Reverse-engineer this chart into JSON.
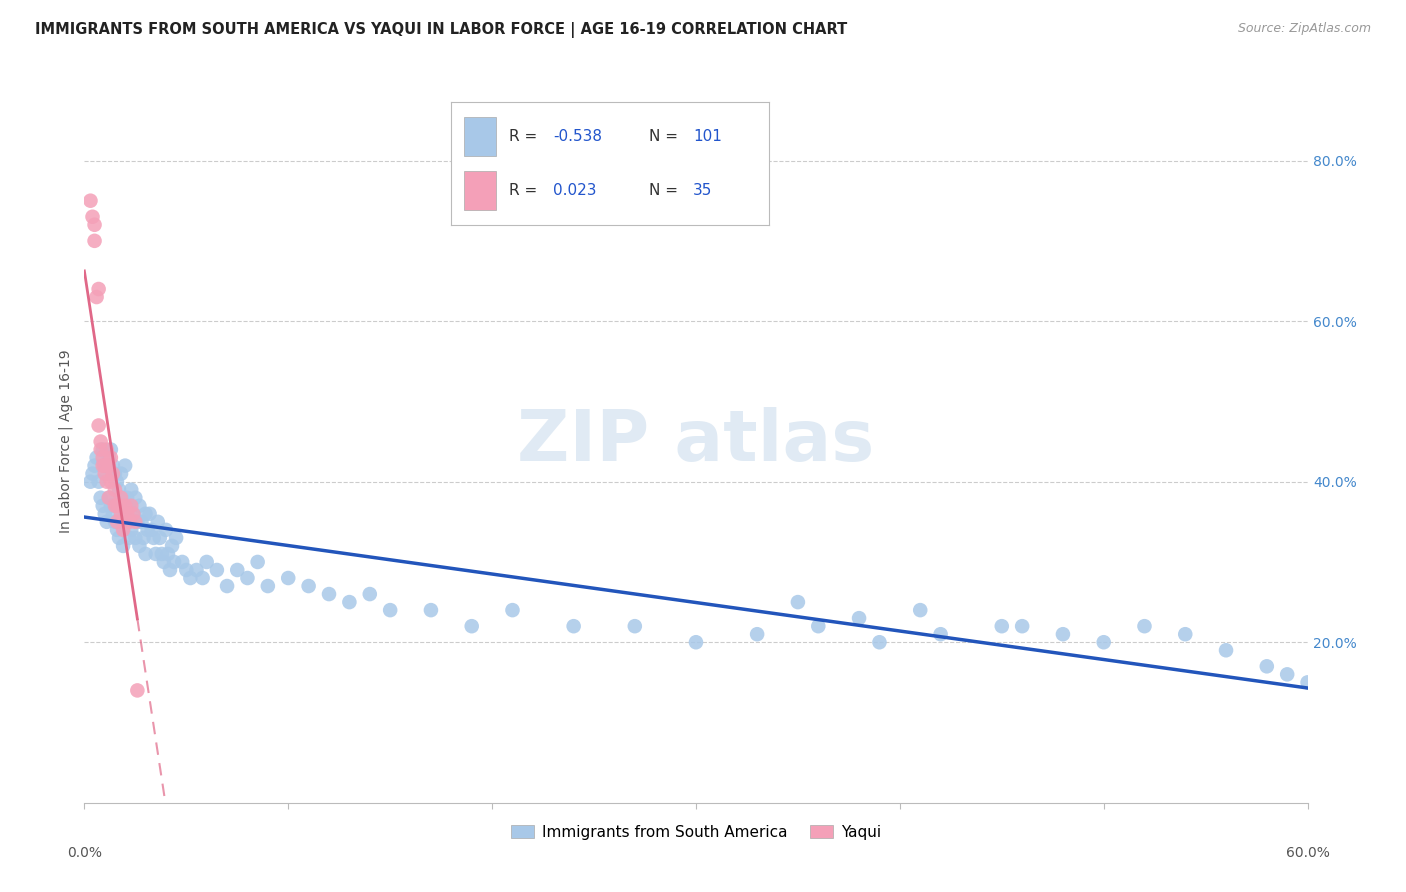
{
  "title": "IMMIGRANTS FROM SOUTH AMERICA VS YAQUI IN LABOR FORCE | AGE 16-19 CORRELATION CHART",
  "source": "Source: ZipAtlas.com",
  "ylabel": "In Labor Force | Age 16-19",
  "legend_label_blue": "Immigrants from South America",
  "legend_label_pink": "Yaqui",
  "r_blue": -0.538,
  "n_blue": 101,
  "r_pink": 0.023,
  "n_pink": 35,
  "blue_color": "#a8c8e8",
  "blue_line_color": "#2255bb",
  "pink_color": "#f4a0b8",
  "pink_line_color": "#e06888",
  "background_color": "#ffffff",
  "grid_color": "#cccccc",
  "title_color": "#222222",
  "source_color": "#999999",
  "xlim": [
    0.0,
    0.6
  ],
  "ylim": [
    0.0,
    0.9
  ],
  "blue_x": [
    0.003,
    0.004,
    0.005,
    0.006,
    0.007,
    0.008,
    0.009,
    0.009,
    0.01,
    0.01,
    0.011,
    0.011,
    0.012,
    0.012,
    0.013,
    0.013,
    0.014,
    0.014,
    0.015,
    0.015,
    0.016,
    0.016,
    0.017,
    0.017,
    0.018,
    0.018,
    0.019,
    0.019,
    0.02,
    0.02,
    0.021,
    0.022,
    0.022,
    0.023,
    0.023,
    0.024,
    0.025,
    0.025,
    0.026,
    0.027,
    0.027,
    0.028,
    0.029,
    0.03,
    0.03,
    0.031,
    0.032,
    0.033,
    0.034,
    0.035,
    0.036,
    0.037,
    0.038,
    0.039,
    0.04,
    0.041,
    0.042,
    0.043,
    0.044,
    0.045,
    0.048,
    0.05,
    0.052,
    0.055,
    0.058,
    0.06,
    0.065,
    0.07,
    0.075,
    0.08,
    0.085,
    0.09,
    0.1,
    0.11,
    0.12,
    0.13,
    0.14,
    0.15,
    0.17,
    0.19,
    0.21,
    0.24,
    0.27,
    0.3,
    0.33,
    0.36,
    0.39,
    0.42,
    0.45,
    0.48,
    0.5,
    0.52,
    0.54,
    0.56,
    0.58,
    0.59,
    0.6,
    0.46,
    0.35,
    0.38,
    0.41
  ],
  "blue_y": [
    0.4,
    0.41,
    0.42,
    0.43,
    0.4,
    0.38,
    0.44,
    0.37,
    0.42,
    0.36,
    0.41,
    0.35,
    0.43,
    0.38,
    0.44,
    0.37,
    0.42,
    0.36,
    0.41,
    0.35,
    0.4,
    0.34,
    0.39,
    0.33,
    0.41,
    0.35,
    0.38,
    0.32,
    0.42,
    0.36,
    0.38,
    0.37,
    0.33,
    0.39,
    0.34,
    0.36,
    0.38,
    0.33,
    0.35,
    0.37,
    0.32,
    0.35,
    0.33,
    0.36,
    0.31,
    0.34,
    0.36,
    0.34,
    0.33,
    0.31,
    0.35,
    0.33,
    0.31,
    0.3,
    0.34,
    0.31,
    0.29,
    0.32,
    0.3,
    0.33,
    0.3,
    0.29,
    0.28,
    0.29,
    0.28,
    0.3,
    0.29,
    0.27,
    0.29,
    0.28,
    0.3,
    0.27,
    0.28,
    0.27,
    0.26,
    0.25,
    0.26,
    0.24,
    0.24,
    0.22,
    0.24,
    0.22,
    0.22,
    0.2,
    0.21,
    0.22,
    0.2,
    0.21,
    0.22,
    0.21,
    0.2,
    0.22,
    0.21,
    0.19,
    0.17,
    0.16,
    0.15,
    0.22,
    0.25,
    0.23,
    0.24
  ],
  "pink_x": [
    0.003,
    0.004,
    0.005,
    0.005,
    0.006,
    0.007,
    0.007,
    0.008,
    0.008,
    0.009,
    0.009,
    0.01,
    0.01,
    0.011,
    0.011,
    0.012,
    0.012,
    0.013,
    0.013,
    0.014,
    0.015,
    0.015,
    0.016,
    0.016,
    0.017,
    0.018,
    0.018,
    0.019,
    0.02,
    0.021,
    0.022,
    0.023,
    0.024,
    0.025,
    0.026
  ],
  "pink_y": [
    0.75,
    0.73,
    0.72,
    0.7,
    0.63,
    0.64,
    0.47,
    0.45,
    0.44,
    0.42,
    0.43,
    0.42,
    0.41,
    0.44,
    0.4,
    0.42,
    0.38,
    0.43,
    0.4,
    0.41,
    0.37,
    0.39,
    0.37,
    0.35,
    0.37,
    0.38,
    0.36,
    0.34,
    0.37,
    0.36,
    0.35,
    0.37,
    0.36,
    0.35,
    0.14
  ]
}
